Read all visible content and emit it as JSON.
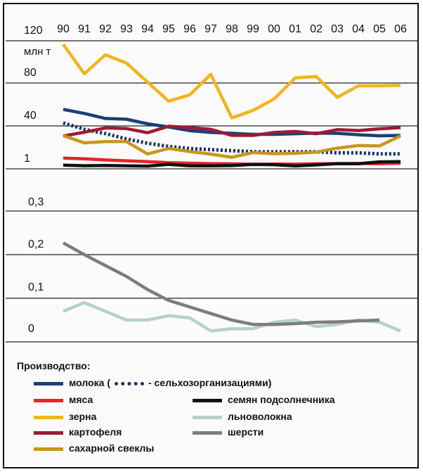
{
  "chart_data": {
    "type": "line",
    "x": [
      "90",
      "91",
      "92",
      "93",
      "94",
      "95",
      "96",
      "97",
      "98",
      "99",
      "00",
      "01",
      "02",
      "03",
      "04",
      "05",
      "06"
    ],
    "upper_y_labels": [
      "120",
      "80",
      "40",
      "1"
    ],
    "lower_y_labels": [
      "0,3",
      "0,2",
      "0,1",
      "0"
    ],
    "unit": "млн т",
    "ylim_upper": [
      0,
      120
    ],
    "ylim_lower": [
      0,
      0.3
    ],
    "grid": true,
    "legend_placement": "bottom",
    "series": [
      {
        "name": "молока",
        "panel": "upper",
        "color": "#1b3f7a",
        "style": "solid",
        "values": [
          55.7,
          51.9,
          47.2,
          46.5,
          42.2,
          39.2,
          35.8,
          34.1,
          33.3,
          32.3,
          32.3,
          32.9,
          33.5,
          33.3,
          31.9,
          31.0,
          31.3
        ]
      },
      {
        "name": "сельхозорганизациями",
        "panel": "upper",
        "color": "#1b2f6b",
        "style": "dotted",
        "values": [
          43,
          37,
          33,
          28,
          24,
          21,
          19,
          18,
          17,
          16,
          16,
          16,
          16,
          15,
          15,
          14,
          14
        ]
      },
      {
        "name": "мяса",
        "panel": "upper",
        "color": "#e8232a",
        "style": "solid",
        "values": [
          10.1,
          9.4,
          8.3,
          7.5,
          6.8,
          5.8,
          5.3,
          4.9,
          4.7,
          4.3,
          4.4,
          4.5,
          4.7,
          4.9,
          5.0,
          4.9,
          5.3
        ]
      },
      {
        "name": "зерна",
        "panel": "upper",
        "color": "#f5b41e",
        "style": "solid",
        "values": [
          116.7,
          89.1,
          106.9,
          99.1,
          81.3,
          63.4,
          69.3,
          88.5,
          47.8,
          54.7,
          65.4,
          85.2,
          86.6,
          67.0,
          77.8,
          77.8,
          78.2
        ]
      },
      {
        "name": "картофеля",
        "panel": "upper",
        "color": "#9e1b34",
        "style": "solid",
        "values": [
          30.8,
          34.3,
          38.3,
          37.7,
          33.8,
          39.9,
          38.7,
          37.0,
          31.4,
          31.3,
          34.0,
          35.0,
          32.9,
          36.7,
          35.9,
          37.5,
          38.6
        ]
      },
      {
        "name": "сахарной свеклы",
        "panel": "upper",
        "color": "#c9971c",
        "style": "solid",
        "values": [
          31.1,
          24.3,
          25.5,
          25.5,
          13.9,
          19.1,
          16.2,
          13.8,
          10.8,
          15.2,
          14.1,
          14.6,
          15.7,
          19.4,
          21.8,
          21.4,
          30.9
        ]
      },
      {
        "name": "семян подсолнечника",
        "panel": "upper",
        "color": "#111111",
        "style": "solid",
        "values": [
          3.4,
          2.9,
          3.1,
          2.8,
          2.6,
          4.2,
          2.8,
          2.8,
          3.0,
          4.1,
          3.9,
          2.7,
          3.7,
          4.9,
          4.8,
          6.5,
          6.8
        ]
      },
      {
        "name": "льноволокна",
        "panel": "lower",
        "color": "#b6d3c1",
        "style": "solid",
        "values": [
          0.07,
          0.09,
          0.07,
          0.05,
          0.05,
          0.06,
          0.055,
          0.025,
          0.03,
          0.03,
          0.045,
          0.05,
          0.035,
          0.04,
          0.05,
          0.045,
          0.025
        ]
      },
      {
        "name": "шерсти",
        "panel": "lower",
        "color": "#7d7d7d",
        "style": "solid",
        "values": [
          0.227,
          0.2,
          0.175,
          0.15,
          0.12,
          0.095,
          0.08,
          0.065,
          0.05,
          0.04,
          0.04,
          0.042,
          0.045,
          0.046,
          0.048,
          0.05,
          null
        ]
      }
    ]
  },
  "legend": {
    "title": "Производство:",
    "items": {
      "milk": "молока (",
      "milk_org": "- сельхозорганизациями)",
      "meat": "мяса",
      "grain": "зерна",
      "potato": "картофеля",
      "sugarbeet": "сахарной свеклы",
      "sunflower": "семян подсолнечника",
      "flax": "льноволокна",
      "wool": "шерсти"
    }
  }
}
